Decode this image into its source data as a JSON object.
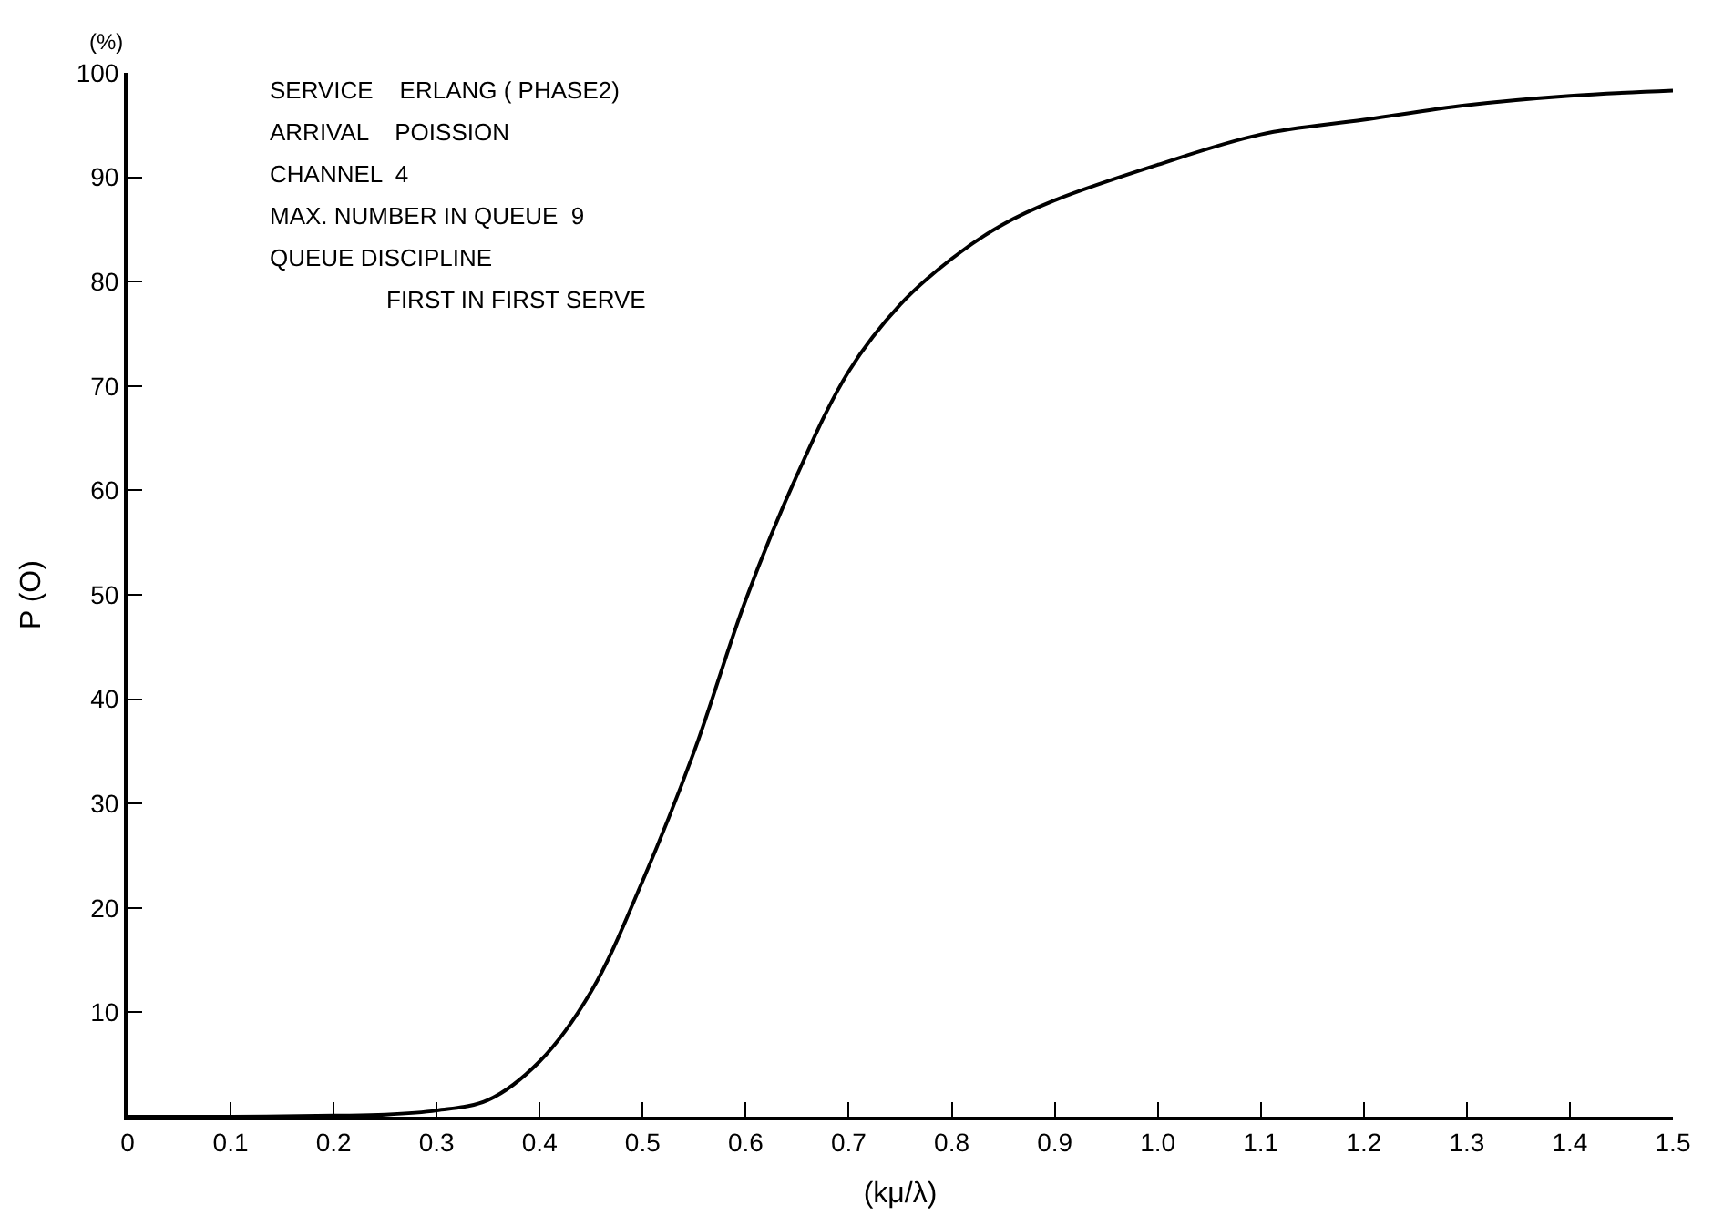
{
  "chart_data": {
    "type": "line",
    "xlabel": "(kμ/λ)",
    "ylabel": "P (O)",
    "annotations": [
      "(%)",
      "SERVICE    ERLANG ( PHASE2)",
      "ARRIVAL    POISSION",
      "CHANNEL  4",
      "MAX. NUMBER IN QUEUE  9",
      "QUEUE DISCIPLINE",
      "FIRST IN FIRST SERVE"
    ],
    "x": [
      0,
      0.1,
      0.2,
      0.25,
      0.3,
      0.35,
      0.4,
      0.45,
      0.5,
      0.55,
      0.6,
      0.65,
      0.7,
      0.75,
      0.8,
      0.85,
      0.9,
      1.0,
      1.1,
      1.2,
      1.3,
      1.4,
      1.5
    ],
    "series": [
      {
        "color": "#000000",
        "values": [
          0,
          0,
          0.1,
          0.2,
          0.6,
          1.6,
          5.3,
          12,
          22.6,
          35,
          49.5,
          61.5,
          71.4,
          77.8,
          82.2,
          85.5,
          87.8,
          91.2,
          94.1,
          95.5,
          96.9,
          97.8,
          98.3
        ]
      }
    ],
    "xlim": [
      0,
      1.5
    ],
    "ylim": [
      0,
      100
    ],
    "xticks": [
      0,
      0.1,
      0.2,
      0.3,
      0.4,
      0.5,
      0.6,
      0.7,
      0.8,
      0.9,
      {
        "value": 1,
        "label": "1.0"
      },
      1.1,
      1.2,
      1.3,
      1.4,
      1.5
    ],
    "yticks": [
      10,
      20,
      30,
      40,
      50,
      60,
      70,
      80,
      90,
      100
    ],
    "marker": "none",
    "line_style": "solid"
  }
}
